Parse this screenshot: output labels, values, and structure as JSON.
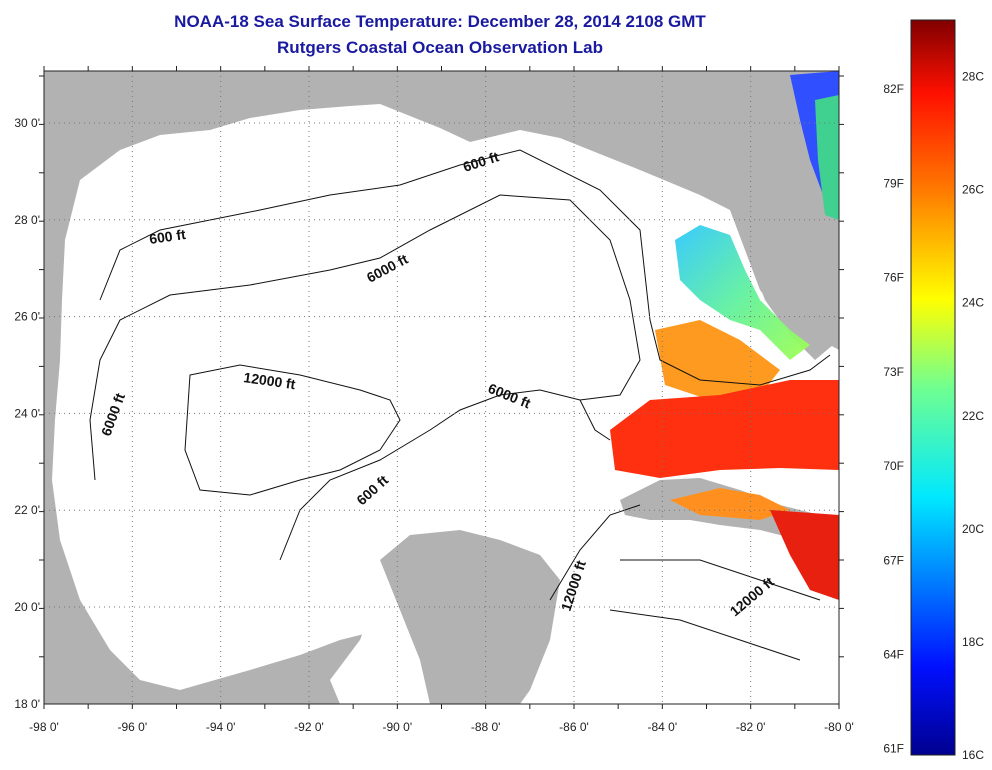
{
  "title": "NOAA-18 Sea Surface Temperature:  December 28, 2014 2108 GMT",
  "subtitle": "Rutgers Coastal Ocean Observation Lab",
  "axes": {
    "lon_labels": [
      "-98 0'",
      "-96 0'",
      "-94 0'",
      "-92 0'",
      "-90 0'",
      "-88 0'",
      "-86 0'",
      "-84 0'",
      "-82 0'",
      "-80 0'"
    ],
    "lat_labels": [
      "30 0'",
      "28 0'",
      "26 0'",
      "24 0'",
      "22 0'",
      "20 0'",
      "18 0'"
    ]
  },
  "contour_labels": {
    "c600_north": "600 ft",
    "c600_west": "600 ft",
    "c6000_north": "6000 ft",
    "c6000_west": "6000 ft",
    "c6000_east": "6000 ft",
    "c12000_center": "12000 ft",
    "c600_south": "600 ft",
    "c12000_se": "12000 ft",
    "c12000_east": "12000 ft"
  },
  "colorbar": {
    "fahrenheit": [
      "82F",
      "79F",
      "76F",
      "73F",
      "70F",
      "67F",
      "64F",
      "61F"
    ],
    "celsius": [
      "28C",
      "26C",
      "24C",
      "22C",
      "20C",
      "18C",
      "16C"
    ],
    "min_c": 16,
    "max_c": 29
  },
  "colors": {
    "land": "#b2b2b2",
    "water": "#ffffff",
    "title": "#1a1aa0"
  }
}
